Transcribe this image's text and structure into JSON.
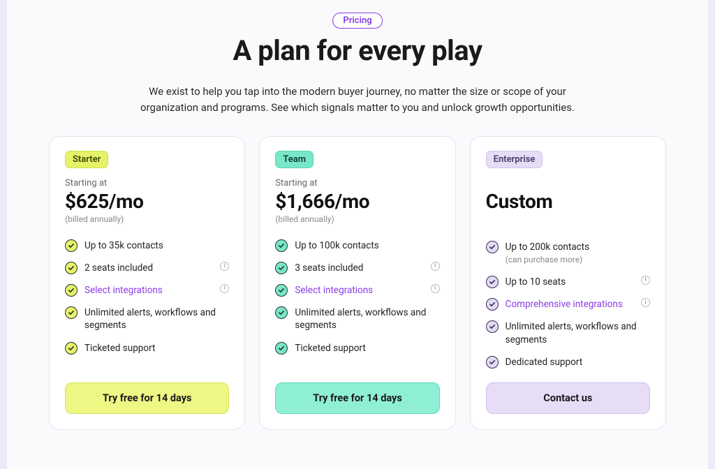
{
  "colors": {
    "page_bg": "#efeaf7",
    "inner_bg": "#faf9fc",
    "card_bg": "#ffffff",
    "card_border": "#e7e3ef",
    "link": "#8a3ce8",
    "text": "#1a1a1a",
    "muted": "#888888"
  },
  "header": {
    "pill_label": "Pricing",
    "pill_text_color": "#8a3ce8",
    "pill_border_color": "#8a3ce8",
    "pill_bg": "#ffffff",
    "title": "A plan for every play",
    "subtitle": "We exist to help you tap into the modern buyer journey, no matter the size or scope of your organization and programs. See which signals matter to you and unlock growth opportunities."
  },
  "plans": [
    {
      "id": "starter",
      "pill_label": "Starter",
      "pill_bg": "#e6f26a",
      "pill_text": "#3a4a00",
      "pill_border": "#cfe24a",
      "starting_label": "Starting at",
      "price": "$625/mo",
      "billed": "(billed annually)",
      "check_bg": "#e6f26a",
      "check_stroke": "#2a2a2a",
      "features": [
        {
          "text": "Up to 35k contacts",
          "info": false,
          "link": false
        },
        {
          "text": "2 seats included",
          "info": true,
          "link": false
        },
        {
          "text": "Select integrations",
          "info": true,
          "link": true
        },
        {
          "text": "Unlimited alerts, workflows and segments",
          "info": false,
          "link": false
        },
        {
          "text": "Ticketed support",
          "info": false,
          "link": false
        }
      ],
      "cta_label": "Try free for 14 days",
      "cta_bg": "#eef684",
      "cta_border": "#d6e65a",
      "cta_text": "#1a1a1a"
    },
    {
      "id": "team",
      "pill_label": "Team",
      "pill_bg": "#7ae6c9",
      "pill_text": "#0a3a2c",
      "pill_border": "#55d6b3",
      "starting_label": "Starting at",
      "price": "$1,666/mo",
      "billed": "(billed annually)",
      "check_bg": "#7ae6c9",
      "check_stroke": "#1a3a32",
      "features": [
        {
          "text": "Up to 100k contacts",
          "info": false,
          "link": false
        },
        {
          "text": "3 seats included",
          "info": true,
          "link": false
        },
        {
          "text": "Select integrations",
          "info": true,
          "link": true
        },
        {
          "text": "Unlimited alerts, workflows and segments",
          "info": false,
          "link": false
        },
        {
          "text": "Ticketed support",
          "info": false,
          "link": false
        }
      ],
      "cta_label": "Try free for 14 days",
      "cta_bg": "#8eefd5",
      "cta_border": "#5fd9ba",
      "cta_text": "#1a1a1a"
    },
    {
      "id": "enterprise",
      "pill_label": "Enterprise",
      "pill_bg": "#e5dcf6",
      "pill_text": "#4a3a6a",
      "pill_border": "#d2c4ee",
      "starting_label": "",
      "price": "Custom",
      "billed": "",
      "check_bg": "#e3dbf3",
      "check_stroke": "#3a2a5a",
      "features": [
        {
          "text": "Up to 200k contacts",
          "subtext": "(can purchase more)",
          "info": false,
          "link": false
        },
        {
          "text": "Up to 10 seats",
          "info": true,
          "link": false
        },
        {
          "text": "Comprehensive integrations",
          "info": true,
          "link": true
        },
        {
          "text": "Unlimited alerts, workflows and segments",
          "info": false,
          "link": false
        },
        {
          "text": "Dedicated support",
          "info": false,
          "link": false
        }
      ],
      "cta_label": "Contact us",
      "cta_bg": "#e7ddf7",
      "cta_border": "#cfc0ee",
      "cta_text": "#1a1a1a"
    }
  ]
}
